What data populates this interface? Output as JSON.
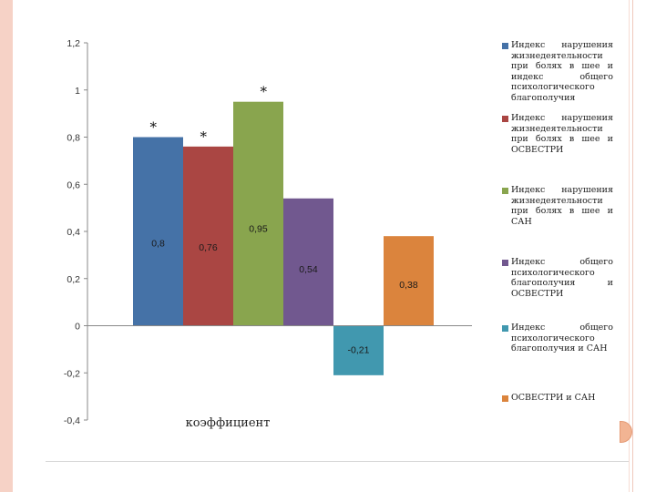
{
  "chart_data": {
    "type": "bar",
    "xlabel": "коэффициент",
    "ylabel": "",
    "ylim": [
      -0.4,
      1.2
    ],
    "y_ticks": [
      "-0,4",
      "-0,2",
      "0",
      "0,2",
      "0,4",
      "0,6",
      "0,8",
      "1",
      "1,2"
    ],
    "grid": false,
    "legend_position": "right",
    "series": [
      {
        "name": "Индекс нарушения жизнедеятельности при болях в шее и индекс общего психологического благополучия",
        "value": 0.8,
        "label": "0,8",
        "significance": "*",
        "color": "#4572a7"
      },
      {
        "name": "Индекс нарушения жизнедеятельности при болях в шее и ОСВЕСТРИ",
        "value": 0.76,
        "label": "0,76",
        "significance": "*",
        "color": "#aa4643"
      },
      {
        "name": "Индекс нарушения жизнедеятельности при болях в шее и САН",
        "value": 0.95,
        "label": "0,95",
        "significance": "*",
        "color": "#89a54e"
      },
      {
        "name": "Индекс общего психологического благополучия и ОСВЕСТРИ",
        "value": 0.54,
        "label": "0,54",
        "significance": "",
        "color": "#71588f"
      },
      {
        "name": "Индекс общего психологического благополучия и САН",
        "value": -0.21,
        "label": "-0,21",
        "significance": "",
        "color": "#4198af"
      },
      {
        "name": "ОСВЕСТРИ и САН",
        "value": 0.38,
        "label": "0,38",
        "significance": "",
        "color": "#db843d"
      }
    ]
  }
}
